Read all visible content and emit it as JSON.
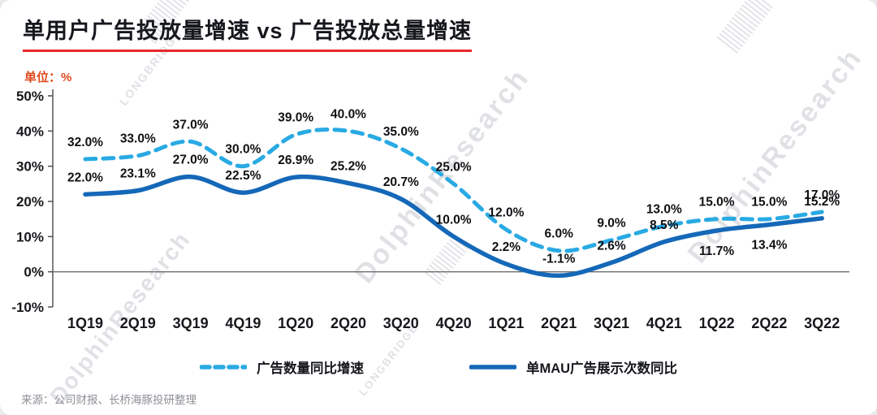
{
  "title": "单用户广告投放量增速 vs 广告投放总量增速",
  "unit_label": "单位：%",
  "source": "来源：公司财报、长桥海豚投研整理",
  "watermark": {
    "brand": "LONGBRIDGE",
    "name": "DolphinResearch"
  },
  "colors": {
    "dashed_line": "#29AAE3",
    "solid_line": "#1568B8",
    "title_underline": "#E8282B",
    "unit_text": "#E04A1E",
    "text_dark": "#15171C",
    "watermark": "#C6CAD0"
  },
  "legend": [
    {
      "label": "广告数量同比增速",
      "style": "dashed",
      "color": "#29AAE3"
    },
    {
      "label": "单MAU广告展示次数同比",
      "style": "solid",
      "color": "#1568B8"
    }
  ],
  "chart_data": {
    "type": "line",
    "title": "单用户广告投放量增速 vs 广告投放总量增速",
    "xlabel": "",
    "ylabel": "单位：%",
    "ylim": [
      -10,
      50
    ],
    "grid": false,
    "legend_position": "bottom",
    "y_ticks": [
      "50%",
      "40%",
      "30%",
      "20%",
      "10%",
      "0%",
      "-10%"
    ],
    "y_tick_values": [
      50,
      40,
      30,
      20,
      10,
      0,
      -10
    ],
    "categories": [
      "1Q19",
      "2Q19",
      "3Q19",
      "4Q19",
      "1Q20",
      "2Q20",
      "3Q20",
      "4Q20",
      "1Q21",
      "2Q21",
      "3Q21",
      "4Q21",
      "1Q22",
      "2Q22",
      "3Q22"
    ],
    "series": [
      {
        "name": "广告数量同比增速",
        "color": "#29AAE3",
        "dash": true,
        "values": [
          32.0,
          33.0,
          37.0,
          30.0,
          39.0,
          40.0,
          35.0,
          25.0,
          12.0,
          6.0,
          9.0,
          13.0,
          15.0,
          15.0,
          17.0
        ],
        "label_sides": [
          "above",
          "above",
          "above",
          "above",
          "above",
          "above",
          "above",
          "above",
          "above",
          "above",
          "above",
          "above",
          "above",
          "above",
          "above"
        ]
      },
      {
        "name": "单MAU广告展示次数同比",
        "color": "#1568B8",
        "dash": false,
        "values": [
          22.0,
          23.1,
          27.0,
          22.5,
          26.9,
          25.2,
          20.7,
          10.0,
          2.2,
          -1.1,
          2.6,
          8.5,
          11.7,
          13.4,
          15.2
        ],
        "label_sides": [
          "above",
          "above",
          "above",
          "above",
          "above",
          "above",
          "above",
          "above",
          "above",
          "above",
          "above",
          "above",
          "below",
          "below",
          "above"
        ]
      }
    ]
  }
}
